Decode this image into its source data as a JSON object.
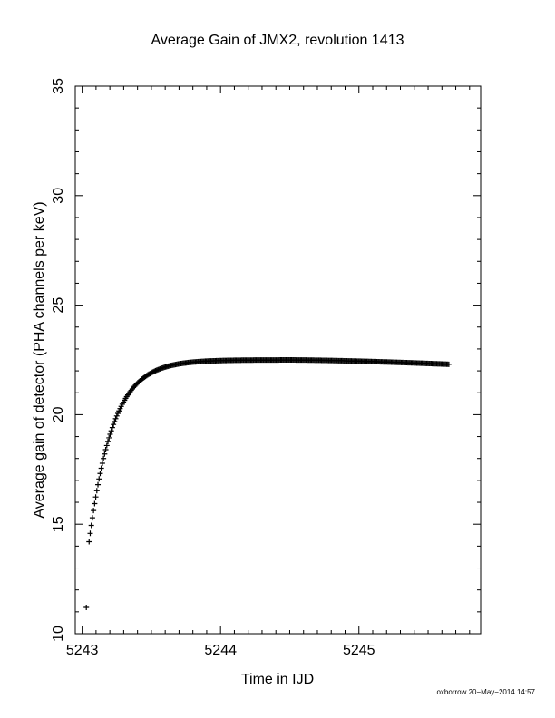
{
  "chart_data": {
    "type": "scatter",
    "title": "Average Gain of JMX2, revolution 1413",
    "xlabel": "Time in IJD",
    "ylabel": "Average gain of detector (PHA channels per keV)",
    "xlim": [
      5242.95,
      5245.88
    ],
    "ylim": [
      10,
      35
    ],
    "xticks": [
      "5243",
      "5244",
      "5245"
    ],
    "yticks": [
      "10",
      "15",
      "20",
      "25",
      "30",
      "35"
    ],
    "xtick_values": [
      5243,
      5244,
      5245
    ],
    "ytick_values": [
      10,
      15,
      20,
      25,
      30,
      35
    ],
    "grid": false,
    "marker": "plus",
    "outlier": {
      "x": 5243.03,
      "y": 11.2
    },
    "curve": {
      "x_start": 5243.05,
      "x_end": 5245.65,
      "y0": 14.2,
      "plateau": 22.5,
      "tau": 0.17,
      "peak_x": 5244.5,
      "decline": 0.2
    },
    "footer": "oxborrow 20−May−2014 14:57"
  }
}
